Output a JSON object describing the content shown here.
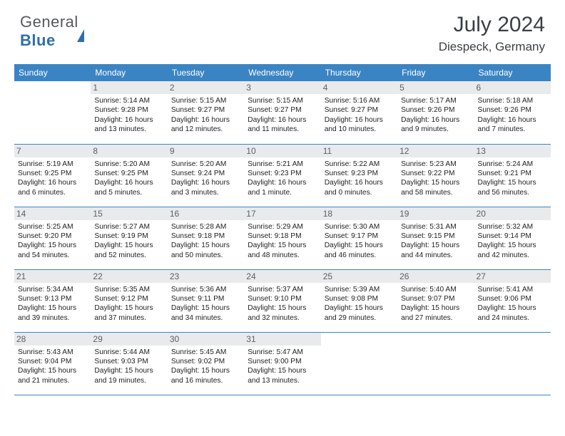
{
  "brand": {
    "part1": "General",
    "part2": "Blue"
  },
  "title": "July 2024",
  "location": "Diespeck, Germany",
  "palette": {
    "header_bg": "#3b84c4",
    "header_fg": "#ffffff",
    "daynum_bg": "#e9eaeb",
    "text": "#222222",
    "brand_accent": "#2f6fa8"
  },
  "columns": [
    "Sunday",
    "Monday",
    "Tuesday",
    "Wednesday",
    "Thursday",
    "Friday",
    "Saturday"
  ],
  "weeks": [
    [
      {
        "n": "",
        "sr": "",
        "ss": "",
        "dl": ""
      },
      {
        "n": "1",
        "sr": "5:14 AM",
        "ss": "9:28 PM",
        "dl": "16 hours and 13 minutes."
      },
      {
        "n": "2",
        "sr": "5:15 AM",
        "ss": "9:27 PM",
        "dl": "16 hours and 12 minutes."
      },
      {
        "n": "3",
        "sr": "5:15 AM",
        "ss": "9:27 PM",
        "dl": "16 hours and 11 minutes."
      },
      {
        "n": "4",
        "sr": "5:16 AM",
        "ss": "9:27 PM",
        "dl": "16 hours and 10 minutes."
      },
      {
        "n": "5",
        "sr": "5:17 AM",
        "ss": "9:26 PM",
        "dl": "16 hours and 9 minutes."
      },
      {
        "n": "6",
        "sr": "5:18 AM",
        "ss": "9:26 PM",
        "dl": "16 hours and 7 minutes."
      }
    ],
    [
      {
        "n": "7",
        "sr": "5:19 AM",
        "ss": "9:25 PM",
        "dl": "16 hours and 6 minutes."
      },
      {
        "n": "8",
        "sr": "5:20 AM",
        "ss": "9:25 PM",
        "dl": "16 hours and 5 minutes."
      },
      {
        "n": "9",
        "sr": "5:20 AM",
        "ss": "9:24 PM",
        "dl": "16 hours and 3 minutes."
      },
      {
        "n": "10",
        "sr": "5:21 AM",
        "ss": "9:23 PM",
        "dl": "16 hours and 1 minute."
      },
      {
        "n": "11",
        "sr": "5:22 AM",
        "ss": "9:23 PM",
        "dl": "16 hours and 0 minutes."
      },
      {
        "n": "12",
        "sr": "5:23 AM",
        "ss": "9:22 PM",
        "dl": "15 hours and 58 minutes."
      },
      {
        "n": "13",
        "sr": "5:24 AM",
        "ss": "9:21 PM",
        "dl": "15 hours and 56 minutes."
      }
    ],
    [
      {
        "n": "14",
        "sr": "5:25 AM",
        "ss": "9:20 PM",
        "dl": "15 hours and 54 minutes."
      },
      {
        "n": "15",
        "sr": "5:27 AM",
        "ss": "9:19 PM",
        "dl": "15 hours and 52 minutes."
      },
      {
        "n": "16",
        "sr": "5:28 AM",
        "ss": "9:18 PM",
        "dl": "15 hours and 50 minutes."
      },
      {
        "n": "17",
        "sr": "5:29 AM",
        "ss": "9:18 PM",
        "dl": "15 hours and 48 minutes."
      },
      {
        "n": "18",
        "sr": "5:30 AM",
        "ss": "9:17 PM",
        "dl": "15 hours and 46 minutes."
      },
      {
        "n": "19",
        "sr": "5:31 AM",
        "ss": "9:15 PM",
        "dl": "15 hours and 44 minutes."
      },
      {
        "n": "20",
        "sr": "5:32 AM",
        "ss": "9:14 PM",
        "dl": "15 hours and 42 minutes."
      }
    ],
    [
      {
        "n": "21",
        "sr": "5:34 AM",
        "ss": "9:13 PM",
        "dl": "15 hours and 39 minutes."
      },
      {
        "n": "22",
        "sr": "5:35 AM",
        "ss": "9:12 PM",
        "dl": "15 hours and 37 minutes."
      },
      {
        "n": "23",
        "sr": "5:36 AM",
        "ss": "9:11 PM",
        "dl": "15 hours and 34 minutes."
      },
      {
        "n": "24",
        "sr": "5:37 AM",
        "ss": "9:10 PM",
        "dl": "15 hours and 32 minutes."
      },
      {
        "n": "25",
        "sr": "5:39 AM",
        "ss": "9:08 PM",
        "dl": "15 hours and 29 minutes."
      },
      {
        "n": "26",
        "sr": "5:40 AM",
        "ss": "9:07 PM",
        "dl": "15 hours and 27 minutes."
      },
      {
        "n": "27",
        "sr": "5:41 AM",
        "ss": "9:06 PM",
        "dl": "15 hours and 24 minutes."
      }
    ],
    [
      {
        "n": "28",
        "sr": "5:43 AM",
        "ss": "9:04 PM",
        "dl": "15 hours and 21 minutes."
      },
      {
        "n": "29",
        "sr": "5:44 AM",
        "ss": "9:03 PM",
        "dl": "15 hours and 19 minutes."
      },
      {
        "n": "30",
        "sr": "5:45 AM",
        "ss": "9:02 PM",
        "dl": "15 hours and 16 minutes."
      },
      {
        "n": "31",
        "sr": "5:47 AM",
        "ss": "9:00 PM",
        "dl": "15 hours and 13 minutes."
      },
      {
        "n": "",
        "sr": "",
        "ss": "",
        "dl": ""
      },
      {
        "n": "",
        "sr": "",
        "ss": "",
        "dl": ""
      },
      {
        "n": "",
        "sr": "",
        "ss": "",
        "dl": ""
      }
    ]
  ],
  "labels": {
    "sunrise": "Sunrise:",
    "sunset": "Sunset:",
    "daylight": "Daylight:"
  }
}
